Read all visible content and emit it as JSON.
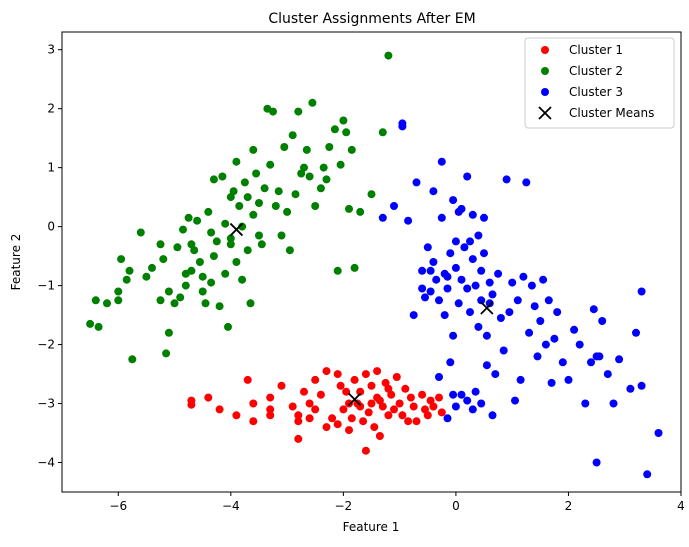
{
  "chart_data": {
    "type": "scatter",
    "title": "Cluster Assignments After EM",
    "xlabel": "Feature 1",
    "ylabel": "Feature 2",
    "xlim": [
      -7,
      4
    ],
    "ylim": [
      -4.5,
      3.3
    ],
    "xticks": [
      -6,
      -4,
      -2,
      0,
      2,
      4
    ],
    "yticks": [
      -4,
      -3,
      -2,
      -1,
      0,
      1,
      2,
      3
    ],
    "grid": false,
    "legend_position": "top-right",
    "series": [
      {
        "name": "Cluster 1",
        "color": "#ff0000",
        "marker": "circle",
        "points": [
          [
            -4.7,
            -2.95
          ],
          [
            -4.7,
            -3.02
          ],
          [
            -4.4,
            -2.9
          ],
          [
            -4.2,
            -3.1
          ],
          [
            -3.9,
            -3.2
          ],
          [
            -3.7,
            -2.6
          ],
          [
            -3.6,
            -3.0
          ],
          [
            -3.6,
            -3.3
          ],
          [
            -3.3,
            -2.9
          ],
          [
            -3.3,
            -3.1
          ],
          [
            -3.3,
            -3.2
          ],
          [
            -3.1,
            -2.7
          ],
          [
            -2.9,
            -3.05
          ],
          [
            -2.8,
            -3.2
          ],
          [
            -2.8,
            -3.6
          ],
          [
            -2.8,
            -3.3
          ],
          [
            -2.7,
            -2.8
          ],
          [
            -2.6,
            -3.0
          ],
          [
            -2.5,
            -2.6
          ],
          [
            -2.5,
            -3.1
          ],
          [
            -2.4,
            -2.85
          ],
          [
            -2.3,
            -2.45
          ],
          [
            -2.2,
            -3.25
          ],
          [
            -2.1,
            -2.5
          ],
          [
            -2.05,
            -2.7
          ],
          [
            -2.0,
            -3.1
          ],
          [
            -1.95,
            -2.8
          ],
          [
            -1.9,
            -3.0
          ],
          [
            -1.85,
            -3.25
          ],
          [
            -1.8,
            -2.6
          ],
          [
            -1.75,
            -3.0
          ],
          [
            -1.7,
            -2.8
          ],
          [
            -1.65,
            -3.3
          ],
          [
            -1.6,
            -2.5
          ],
          [
            -1.55,
            -3.15
          ],
          [
            -1.5,
            -2.7
          ],
          [
            -1.5,
            -3.0
          ],
          [
            -1.45,
            -3.4
          ],
          [
            -1.4,
            -2.45
          ],
          [
            -1.4,
            -2.9
          ],
          [
            -1.35,
            -3.55
          ],
          [
            -1.3,
            -3.05
          ],
          [
            -1.25,
            -2.65
          ],
          [
            -1.2,
            -3.2
          ],
          [
            -1.15,
            -2.85
          ],
          [
            -1.1,
            -3.1
          ],
          [
            -1.05,
            -2.55
          ],
          [
            -1.0,
            -3.0
          ],
          [
            -0.95,
            -3.2
          ],
          [
            -0.9,
            -2.75
          ],
          [
            -0.85,
            -3.3
          ],
          [
            -0.8,
            -2.9
          ],
          [
            -0.75,
            -3.05
          ],
          [
            -0.7,
            -3.3
          ],
          [
            -0.6,
            -2.85
          ],
          [
            -0.55,
            -3.1
          ],
          [
            -0.5,
            -3.2
          ],
          [
            -0.45,
            -2.95
          ],
          [
            -0.4,
            -3.05
          ],
          [
            -0.3,
            -2.9
          ],
          [
            -0.25,
            -3.15
          ],
          [
            -1.6,
            -3.8
          ],
          [
            -1.9,
            -3.45
          ],
          [
            -2.3,
            -3.4
          ],
          [
            -1.2,
            -2.75
          ],
          [
            -1.35,
            -2.95
          ],
          [
            -2.1,
            -3.35
          ],
          [
            -1.7,
            -3.05
          ],
          [
            -2.6,
            -3.25
          ]
        ]
      },
      {
        "name": "Cluster 2",
        "color": "#008000",
        "marker": "circle",
        "points": [
          [
            -6.5,
            -1.65
          ],
          [
            -6.4,
            -1.25
          ],
          [
            -6.35,
            -1.7
          ],
          [
            -6.2,
            -1.3
          ],
          [
            -6.0,
            -1.25
          ],
          [
            -6.0,
            -1.1
          ],
          [
            -5.95,
            -0.55
          ],
          [
            -5.85,
            -0.9
          ],
          [
            -5.8,
            -0.75
          ],
          [
            -5.75,
            -2.25
          ],
          [
            -5.6,
            -0.1
          ],
          [
            -5.5,
            -0.85
          ],
          [
            -5.4,
            -0.7
          ],
          [
            -5.25,
            -0.3
          ],
          [
            -5.25,
            -1.25
          ],
          [
            -5.2,
            -0.55
          ],
          [
            -5.15,
            -2.15
          ],
          [
            -5.1,
            -1.8
          ],
          [
            -5.1,
            -1.1
          ],
          [
            -5.0,
            -1.3
          ],
          [
            -4.95,
            -0.35
          ],
          [
            -4.9,
            -1.2
          ],
          [
            -4.85,
            -0.05
          ],
          [
            -4.8,
            -0.8
          ],
          [
            -4.75,
            0.15
          ],
          [
            -4.7,
            -0.3
          ],
          [
            -4.7,
            -0.75
          ],
          [
            -4.65,
            -0.4
          ],
          [
            -4.6,
            0.1
          ],
          [
            -4.55,
            -0.6
          ],
          [
            -4.5,
            -1.1
          ],
          [
            -4.45,
            -1.3
          ],
          [
            -4.4,
            0.25
          ],
          [
            -4.35,
            -0.1
          ],
          [
            -4.3,
            -0.5
          ],
          [
            -4.3,
            0.8
          ],
          [
            -4.25,
            -0.25
          ],
          [
            -4.2,
            -1.35
          ],
          [
            -4.15,
            0.85
          ],
          [
            -4.1,
            -0.8
          ],
          [
            -4.05,
            -1.7
          ],
          [
            -4.0,
            0.5
          ],
          [
            -4.0,
            -0.2
          ],
          [
            -3.95,
            0.6
          ],
          [
            -3.9,
            -0.6
          ],
          [
            -3.9,
            1.1
          ],
          [
            -3.85,
            0.35
          ],
          [
            -3.8,
            -0.9
          ],
          [
            -3.8,
            0.0
          ],
          [
            -3.75,
            0.75
          ],
          [
            -3.7,
            -0.4
          ],
          [
            -3.65,
            -1.3
          ],
          [
            -3.6,
            1.3
          ],
          [
            -3.6,
            0.2
          ],
          [
            -3.55,
            0.9
          ],
          [
            -3.5,
            0.4
          ],
          [
            -3.45,
            -0.3
          ],
          [
            -3.4,
            0.65
          ],
          [
            -3.35,
            2.0
          ],
          [
            -3.3,
            1.05
          ],
          [
            -3.25,
            1.95
          ],
          [
            -3.2,
            0.35
          ],
          [
            -3.15,
            0.6
          ],
          [
            -3.1,
            -0.15
          ],
          [
            -3.05,
            1.35
          ],
          [
            -3.0,
            0.25
          ],
          [
            -2.95,
            -0.4
          ],
          [
            -2.9,
            1.55
          ],
          [
            -2.85,
            0.55
          ],
          [
            -2.8,
            1.95
          ],
          [
            -2.75,
            0.9
          ],
          [
            -2.7,
            1.0
          ],
          [
            -2.65,
            1.3
          ],
          [
            -2.6,
            0.85
          ],
          [
            -2.55,
            2.1
          ],
          [
            -2.5,
            0.35
          ],
          [
            -2.4,
            0.65
          ],
          [
            -2.35,
            1.0
          ],
          [
            -2.3,
            0.8
          ],
          [
            -2.25,
            1.35
          ],
          [
            -2.15,
            1.65
          ],
          [
            -2.1,
            -0.75
          ],
          [
            -2.05,
            1.05
          ],
          [
            -2.0,
            1.8
          ],
          [
            -1.95,
            1.6
          ],
          [
            -1.9,
            0.3
          ],
          [
            -1.85,
            1.3
          ],
          [
            -1.8,
            -0.7
          ],
          [
            -1.7,
            0.25
          ],
          [
            -1.5,
            0.55
          ],
          [
            -1.3,
            1.6
          ],
          [
            -1.2,
            2.9
          ],
          [
            -4.5,
            -0.85
          ],
          [
            -4.0,
            -0.3
          ],
          [
            -3.7,
            0.5
          ],
          [
            -4.8,
            -1.0
          ],
          [
            -4.1,
            0.05
          ],
          [
            -3.5,
            -0.15
          ],
          [
            -4.35,
            -0.95
          ]
        ]
      },
      {
        "name": "Cluster 3",
        "color": "#0000ff",
        "marker": "circle",
        "points": [
          [
            -1.3,
            0.15
          ],
          [
            -1.1,
            0.35
          ],
          [
            -0.95,
            1.75
          ],
          [
            -0.95,
            1.7
          ],
          [
            -0.85,
            0.1
          ],
          [
            -0.75,
            -1.5
          ],
          [
            -0.7,
            0.75
          ],
          [
            -0.6,
            -0.75
          ],
          [
            -0.6,
            -1.05
          ],
          [
            -0.55,
            -1.2
          ],
          [
            -0.5,
            -0.35
          ],
          [
            -0.45,
            -0.75
          ],
          [
            -0.45,
            -1.1
          ],
          [
            -0.4,
            0.6
          ],
          [
            -0.4,
            -0.6
          ],
          [
            -0.35,
            -0.9
          ],
          [
            -0.3,
            -1.25
          ],
          [
            -0.3,
            -2.55
          ],
          [
            -0.25,
            0.15
          ],
          [
            -0.25,
            1.1
          ],
          [
            -0.2,
            -0.8
          ],
          [
            -0.15,
            -1.05
          ],
          [
            -0.1,
            -0.45
          ],
          [
            -0.1,
            -2.3
          ],
          [
            -0.05,
            0.45
          ],
          [
            -0.05,
            -1.85
          ],
          [
            0.0,
            -0.25
          ],
          [
            0.0,
            -0.7
          ],
          [
            0.05,
            0.25
          ],
          [
            0.05,
            -1.3
          ],
          [
            0.1,
            -0.9
          ],
          [
            0.1,
            -2.85
          ],
          [
            0.15,
            -0.35
          ],
          [
            0.2,
            0.85
          ],
          [
            0.2,
            -1.05
          ],
          [
            0.25,
            -1.45
          ],
          [
            0.3,
            -0.55
          ],
          [
            0.3,
            0.2
          ],
          [
            0.35,
            -1.0
          ],
          [
            0.35,
            -2.8
          ],
          [
            0.4,
            -0.15
          ],
          [
            0.45,
            -0.75
          ],
          [
            0.45,
            -1.25
          ],
          [
            0.5,
            0.15
          ],
          [
            0.55,
            -1.85
          ],
          [
            0.55,
            -2.35
          ],
          [
            0.6,
            -0.95
          ],
          [
            0.65,
            -1.15
          ],
          [
            0.7,
            -2.5
          ],
          [
            0.75,
            -0.8
          ],
          [
            0.8,
            -1.55
          ],
          [
            0.85,
            -2.1
          ],
          [
            0.9,
            0.8
          ],
          [
            0.95,
            -1.45
          ],
          [
            1.0,
            -0.95
          ],
          [
            1.05,
            -2.95
          ],
          [
            1.1,
            -1.25
          ],
          [
            1.15,
            -2.6
          ],
          [
            1.2,
            -0.85
          ],
          [
            1.25,
            0.75
          ],
          [
            1.3,
            -1.8
          ],
          [
            1.35,
            -1.0
          ],
          [
            1.4,
            -1.35
          ],
          [
            1.45,
            -2.2
          ],
          [
            1.5,
            -1.6
          ],
          [
            1.55,
            -0.9
          ],
          [
            1.6,
            -2.0
          ],
          [
            1.65,
            -1.25
          ],
          [
            1.7,
            -2.65
          ],
          [
            1.75,
            -1.9
          ],
          [
            1.8,
            -1.45
          ],
          [
            1.9,
            -2.3
          ],
          [
            2.0,
            -2.6
          ],
          [
            2.1,
            -1.75
          ],
          [
            2.2,
            -2.0
          ],
          [
            2.3,
            -3.0
          ],
          [
            2.4,
            -2.3
          ],
          [
            2.45,
            -1.4
          ],
          [
            2.5,
            -2.2
          ],
          [
            2.55,
            -2.2
          ],
          [
            2.6,
            -1.6
          ],
          [
            2.7,
            -2.5
          ],
          [
            2.8,
            -3.0
          ],
          [
            2.9,
            -2.25
          ],
          [
            3.1,
            -2.75
          ],
          [
            3.2,
            -1.8
          ],
          [
            3.3,
            -1.1
          ],
          [
            3.3,
            -2.7
          ],
          [
            3.4,
            -4.2
          ],
          [
            3.6,
            -3.5
          ],
          [
            2.5,
            -4.0
          ],
          [
            0.3,
            -3.1
          ],
          [
            0.0,
            -3.05
          ],
          [
            -0.15,
            -3.25
          ],
          [
            0.45,
            -3.0
          ],
          [
            0.65,
            -3.2
          ],
          [
            0.2,
            -2.95
          ],
          [
            -0.05,
            -2.85
          ],
          [
            0.1,
            0.3
          ],
          [
            0.5,
            -0.45
          ],
          [
            0.25,
            -0.25
          ],
          [
            0.4,
            -1.7
          ],
          [
            -0.2,
            -1.5
          ],
          [
            -0.15,
            -0.85
          ],
          [
            0.6,
            -1.3
          ]
        ]
      }
    ],
    "means": {
      "name": "Cluster Means",
      "color": "#000000",
      "marker": "x",
      "points": [
        [
          -3.9,
          -0.05
        ],
        [
          0.55,
          -1.38
        ],
        [
          -1.8,
          -2.93
        ]
      ]
    }
  }
}
